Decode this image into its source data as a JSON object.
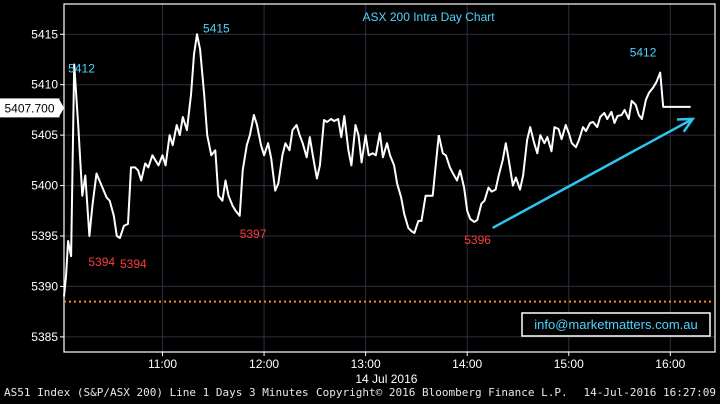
{
  "chart_data": {
    "type": "line",
    "title": "ASX 200 Intra Day Chart",
    "xlabel": "14 Jul 2016",
    "ylabel": "",
    "x_ticks": [
      {
        "t": 11.0,
        "label": "11:00"
      },
      {
        "t": 12.0,
        "label": "12:00"
      },
      {
        "t": 13.0,
        "label": "13:00"
      },
      {
        "t": 14.0,
        "label": "14:00"
      },
      {
        "t": 15.0,
        "label": "15:00"
      },
      {
        "t": 16.0,
        "label": "16:00"
      }
    ],
    "y_ticks": [
      5385,
      5390,
      5395,
      5400,
      5405,
      5410,
      5415
    ],
    "xlim": [
      10.03,
      16.44
    ],
    "ylim": [
      5383.5,
      5418.0
    ],
    "series": [
      {
        "color": "#ffffff",
        "points": [
          [
            10.03,
            5389
          ],
          [
            10.05,
            5391
          ],
          [
            10.07,
            5394.5
          ],
          [
            10.1,
            5393
          ],
          [
            10.13,
            5412
          ],
          [
            10.17,
            5406
          ],
          [
            10.21,
            5399
          ],
          [
            10.24,
            5401
          ],
          [
            10.28,
            5395
          ],
          [
            10.31,
            5398
          ],
          [
            10.35,
            5401.2
          ],
          [
            10.4,
            5400
          ],
          [
            10.45,
            5398.8
          ],
          [
            10.48,
            5398.5
          ],
          [
            10.52,
            5397
          ],
          [
            10.55,
            5395
          ],
          [
            10.58,
            5394.8
          ],
          [
            10.62,
            5396
          ],
          [
            10.66,
            5396.2
          ],
          [
            10.69,
            5401.8
          ],
          [
            10.73,
            5401.8
          ],
          [
            10.76,
            5401.5
          ],
          [
            10.79,
            5400.5
          ],
          [
            10.83,
            5402.2
          ],
          [
            10.86,
            5401.8
          ],
          [
            10.9,
            5403
          ],
          [
            10.93,
            5402.5
          ],
          [
            10.96,
            5402
          ],
          [
            11.0,
            5403
          ],
          [
            11.03,
            5402
          ],
          [
            11.07,
            5405
          ],
          [
            11.1,
            5404
          ],
          [
            11.14,
            5406
          ],
          [
            11.17,
            5405
          ],
          [
            11.2,
            5406.8
          ],
          [
            11.24,
            5405.5
          ],
          [
            11.28,
            5409
          ],
          [
            11.31,
            5413
          ],
          [
            11.34,
            5415
          ],
          [
            11.37,
            5413.5
          ],
          [
            11.41,
            5409
          ],
          [
            11.44,
            5405
          ],
          [
            11.48,
            5403
          ],
          [
            11.52,
            5403.5
          ],
          [
            11.55,
            5399
          ],
          [
            11.59,
            5398.5
          ],
          [
            11.62,
            5400.5
          ],
          [
            11.65,
            5399
          ],
          [
            11.69,
            5398
          ],
          [
            11.72,
            5397.5
          ],
          [
            11.76,
            5397
          ],
          [
            11.79,
            5401.5
          ],
          [
            11.83,
            5404
          ],
          [
            11.86,
            5405
          ],
          [
            11.9,
            5407
          ],
          [
            11.93,
            5406
          ],
          [
            11.97,
            5404
          ],
          [
            12.0,
            5403
          ],
          [
            12.04,
            5404.2
          ],
          [
            12.07,
            5402.7
          ],
          [
            12.11,
            5399.5
          ],
          [
            12.14,
            5400.2
          ],
          [
            12.18,
            5403
          ],
          [
            12.21,
            5404.2
          ],
          [
            12.25,
            5403.5
          ],
          [
            12.28,
            5405.5
          ],
          [
            12.32,
            5406
          ],
          [
            12.35,
            5405
          ],
          [
            12.38,
            5404.2
          ],
          [
            12.42,
            5402.8
          ],
          [
            12.45,
            5404.8
          ],
          [
            12.48,
            5403
          ],
          [
            12.52,
            5400.7
          ],
          [
            12.55,
            5402
          ],
          [
            12.59,
            5406.5
          ],
          [
            12.62,
            5406.3
          ],
          [
            12.66,
            5406.6
          ],
          [
            12.69,
            5406.4
          ],
          [
            12.73,
            5406.6
          ],
          [
            12.76,
            5404.8
          ],
          [
            12.79,
            5406.9
          ],
          [
            12.83,
            5403.5
          ],
          [
            12.86,
            5402
          ],
          [
            12.9,
            5406
          ],
          [
            12.93,
            5405
          ],
          [
            12.96,
            5402.3
          ],
          [
            13.0,
            5405
          ],
          [
            13.03,
            5403
          ],
          [
            13.07,
            5403.2
          ],
          [
            13.1,
            5403
          ],
          [
            13.14,
            5405.2
          ],
          [
            13.17,
            5402.8
          ],
          [
            13.21,
            5404.2
          ],
          [
            13.24,
            5403
          ],
          [
            13.28,
            5402
          ],
          [
            13.31,
            5400.2
          ],
          [
            13.35,
            5398.8
          ],
          [
            13.38,
            5397.2
          ],
          [
            13.42,
            5395.8
          ],
          [
            13.45,
            5395.5
          ],
          [
            13.48,
            5395.3
          ],
          [
            13.52,
            5396.5
          ],
          [
            13.55,
            5396.5
          ],
          [
            13.59,
            5399
          ],
          [
            13.62,
            5399
          ],
          [
            13.66,
            5399
          ],
          [
            13.69,
            5402
          ],
          [
            13.72,
            5405
          ]
        ]
      }
    ],
    "value_labels": [
      {
        "text": "5412",
        "color": "#4fd3ff",
        "anchor": "max-left"
      },
      {
        "text": "5394",
        "color": "#ff3b3b",
        "anchor": "min-left"
      },
      {
        "text": "5394",
        "color": "#ff3b3b",
        "anchor": "min-left2"
      },
      {
        "text": "5415",
        "color": "#4fd3ff",
        "anchor": "max-mid"
      },
      {
        "text": "5397",
        "color": "#ff3b3b",
        "anchor": "min-mid"
      },
      {
        "text": "5396",
        "color": "#ff3b3b",
        "anchor": "min-right"
      },
      {
        "text": "5412",
        "color": "#4fd3ff",
        "anchor": "max-right"
      }
    ],
    "last_price": "5407.700",
    "reference_level": 5388.5,
    "watermark": "info@marketmatters.com.au",
    "colors": {
      "background": "#000000",
      "plot_bg": "#000000",
      "frame": "#ffffff",
      "grid": "#2b3240",
      "title": "#4fd3ff",
      "reference_line": "#ff8c1a",
      "arrow": "#2ec6f0",
      "watermark_text": "#4fd3ff",
      "watermark_border": "#ffffff",
      "tick_text": "#ffffff"
    }
  },
  "footer": {
    "left": "AS51 Index (S&P/ASX 200) Line 1 Days 3 Minutes",
    "mid": "Copyright© 2016 Bloomberg Finance L.P.",
    "right": "14-Jul-2016 16:27:09"
  }
}
